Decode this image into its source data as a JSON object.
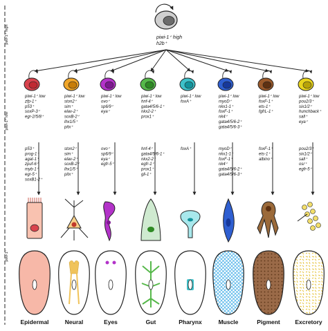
{
  "stem": {
    "lines": [
      "piwi-1⁺ high",
      "h2b⁺"
    ]
  },
  "side_labels": {
    "top": "piwi-1⁺ high",
    "middle": "piwi-1⁺ low",
    "bottom": "piwi-1⁻"
  },
  "progenitors": [
    {
      "color": "#d9434d",
      "nucleus": "#c02a33",
      "markers": [
        "piwi-1⁺ low",
        "zfp-1⁺",
        "p53⁺",
        "soxP-3⁺",
        "egr-2/5/8⁺"
      ]
    },
    {
      "color": "#f0a62a",
      "nucleus": "#c77d08",
      "markers": [
        "piwi-1⁺ low",
        "ston2⁺",
        "sim⁺",
        "elav-2⁺",
        "soxB-2⁺",
        "lhx1/5⁺",
        "pitx⁺"
      ]
    },
    {
      "color": "#b333c9",
      "nucleus": "#7d1990",
      "markers": [
        "piwi-1⁺ low",
        "ovo⁺",
        "sp6/9⁺",
        "eya⁺"
      ]
    },
    {
      "color": "#56b84a",
      "nucleus": "#2e8a24",
      "markers": [
        "piwi-1⁺ low",
        "hnf-4⁺",
        "gata4/5/6-1⁺",
        "nkx2-2⁺",
        "prox1⁺"
      ]
    },
    {
      "color": "#3ec1c9",
      "nucleus": "#12939c",
      "markers": [
        "piwi-1⁺ low",
        "foxA⁺"
      ]
    },
    {
      "color": "#2f5fd1",
      "nucleus": "#17389a",
      "markers": [
        "piwi-1⁺ low",
        "myoD⁺",
        "nkx1-1⁺",
        "foxF-1⁺",
        "nk4⁺",
        "gata4/5/6-2⁺",
        "gata4/5/6-3⁺"
      ]
    },
    {
      "color": "#9b5a2b",
      "nucleus": "#5e3112",
      "markers": [
        "piwi-1⁺ low",
        "foxF-1⁺",
        "ets-1⁺",
        "fgfrL-1⁺"
      ]
    },
    {
      "color": "#e8d41e",
      "nucleus": "#b7a308",
      "markers": [
        "piwi-1⁺ low",
        "pou2/3⁺",
        "six1/2⁺",
        "hunchback⁺",
        "sall⁺",
        "eya⁺"
      ]
    }
  ],
  "terminal_markers": [
    [
      "p53⁺",
      "prog-1⁺",
      "agat-1⁺",
      "zpuf-6⁺",
      "myb-1⁺",
      "egr-5⁺",
      "soxB1-2⁺"
    ],
    [
      "ston2⁺",
      "sim⁺",
      "elav-2⁺",
      "soxB-2⁺",
      "lhx1/5⁺",
      "pitx⁺"
    ],
    [
      "ovo⁺",
      "sp6/9⁺",
      "eya⁺",
      "egfr-5⁺"
    ],
    [
      "hnf-4⁺",
      "gata4/5/6-1⁺",
      "nkx2-2⁺",
      "egfr-1⁺",
      "prox1⁺",
      "gli-1⁺"
    ],
    [
      "foxA⁺"
    ],
    [
      "myoD⁺",
      "nkx1-1⁺",
      "foxF-1⁺",
      "nk4⁺",
      "gata4/5/6-2⁺",
      "gata4/5/6-3⁺"
    ],
    [
      "foxF-1⁺",
      "ets-1⁺",
      "albino⁺"
    ],
    [
      "pou2/3⁺",
      "six1/2⁺",
      "sall⁺",
      "osr⁺",
      "egfr-5⁺"
    ]
  ],
  "lineages": [
    "Epidermal",
    "Neural",
    "Eyes",
    "Gut",
    "Pharynx",
    "Muscle",
    "Pigment",
    "Excretory"
  ]
}
